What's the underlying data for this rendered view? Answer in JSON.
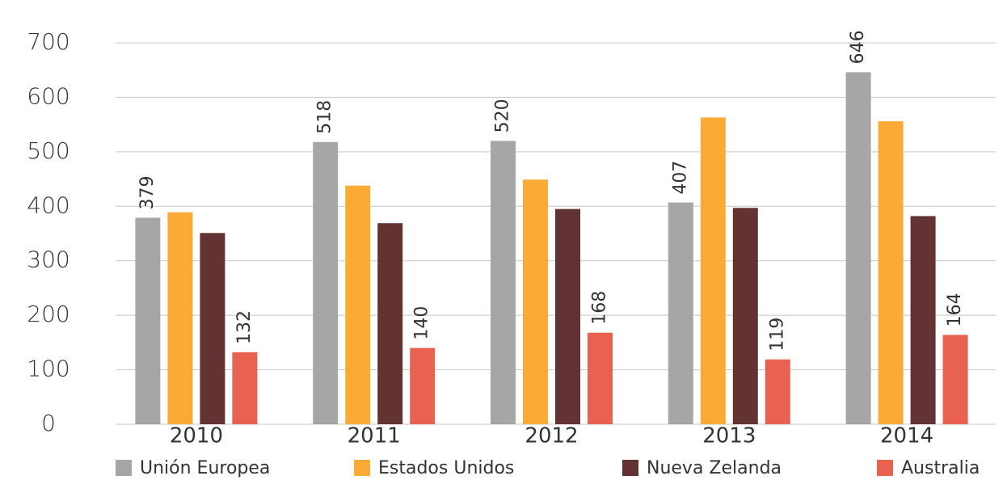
{
  "chart_data": {
    "type": "bar",
    "categories": [
      "2010",
      "2011",
      "2012",
      "2013",
      "2014"
    ],
    "series": [
      {
        "name": "Unión Europea",
        "color": "#a6a6a6",
        "values": [
          379,
          518,
          520,
          407,
          646
        ],
        "show_labels": true
      },
      {
        "name": "Estados Unidos",
        "color": "#fbaa36",
        "values": [
          389,
          438,
          449,
          563,
          556
        ],
        "show_labels": false
      },
      {
        "name": "Nueva Zelanda",
        "color": "#633232",
        "values": [
          351,
          369,
          395,
          397,
          382
        ],
        "show_labels": false
      },
      {
        "name": "Australia",
        "color": "#e8624f",
        "values": [
          132,
          140,
          168,
          119,
          164
        ],
        "show_labels": true
      }
    ],
    "ylim": [
      0,
      700
    ],
    "yticks": [
      0,
      100,
      200,
      300,
      400,
      500,
      600,
      700
    ],
    "grid": true,
    "legend": "bottom"
  }
}
